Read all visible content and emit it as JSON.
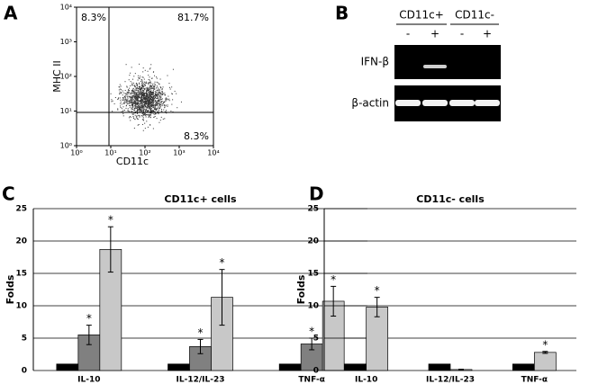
{
  "chart_data": [
    {
      "type": "scatter",
      "panel": "A",
      "xlabel": "CD11c",
      "ylabel": "MHC II",
      "log_scale": true,
      "xlim": [
        1,
        10000
      ],
      "ylim": [
        1,
        10000
      ],
      "xticks": [
        {
          "value": 1,
          "label": "10⁰"
        },
        {
          "value": 10,
          "label": "10¹"
        },
        {
          "value": 100,
          "label": "10²"
        },
        {
          "value": 1000,
          "label": "10³"
        },
        {
          "value": 10000,
          "label": "10⁴"
        }
      ],
      "yticks": [
        {
          "value": 1,
          "label": "10⁰"
        },
        {
          "value": 10,
          "label": "10¹"
        },
        {
          "value": 100,
          "label": "10²"
        },
        {
          "value": 1000,
          "label": "10³"
        },
        {
          "value": 10000,
          "label": "10⁴"
        }
      ],
      "quadrant_labels": [
        "8.3%",
        "81.7%",
        "8.3%"
      ]
    },
    {
      "type": "gel",
      "panel": "B",
      "groups": [
        {
          "label": "CD11c+",
          "lanes": [
            "-",
            "+"
          ]
        },
        {
          "label": "CD11c-",
          "lanes": [
            "-",
            "+"
          ]
        }
      ],
      "rows": [
        "IFN-β",
        "β-actin"
      ]
    },
    {
      "type": "bar",
      "panel": "C",
      "title": "CD11c+ cells",
      "ylabel": "Folds",
      "categories": [
        "IL-10",
        "IL-12/IL-23",
        "TNF-α"
      ],
      "series": [
        {
          "color": "#000000",
          "values": [
            1,
            1,
            1
          ]
        },
        {
          "color": "#808080",
          "values": [
            5.5,
            3.7,
            4.1
          ],
          "errors": [
            1.5,
            1.1,
            0.9
          ],
          "significance": [
            "*",
            "*",
            "*"
          ]
        },
        {
          "color": "#c8c8c8",
          "values": [
            18.7,
            11.3,
            10.7
          ],
          "errors": [
            3.5,
            4.3,
            2.3
          ],
          "significance": [
            "*",
            "*",
            "*"
          ]
        }
      ],
      "ylim": [
        0,
        25
      ],
      "yticks": [
        0,
        5,
        10,
        15,
        20,
        25
      ],
      "grid": true
    },
    {
      "type": "bar",
      "panel": "D",
      "title": "CD11c- cells",
      "ylabel": "Folds",
      "categories": [
        "IL-10",
        "IL-12/IL-23",
        "TNF-α"
      ],
      "series": [
        {
          "color": "#000000",
          "values": [
            1,
            1,
            1
          ]
        },
        {
          "color": "#c8c8c8",
          "values": [
            9.8,
            0.15,
            2.8
          ],
          "errors": [
            1.5,
            0.05,
            0.15
          ],
          "significance": [
            "*",
            null,
            "*"
          ]
        }
      ],
      "ylim": [
        0,
        25
      ],
      "yticks": [
        0,
        5,
        10,
        15,
        20,
        25
      ],
      "grid": true
    }
  ]
}
